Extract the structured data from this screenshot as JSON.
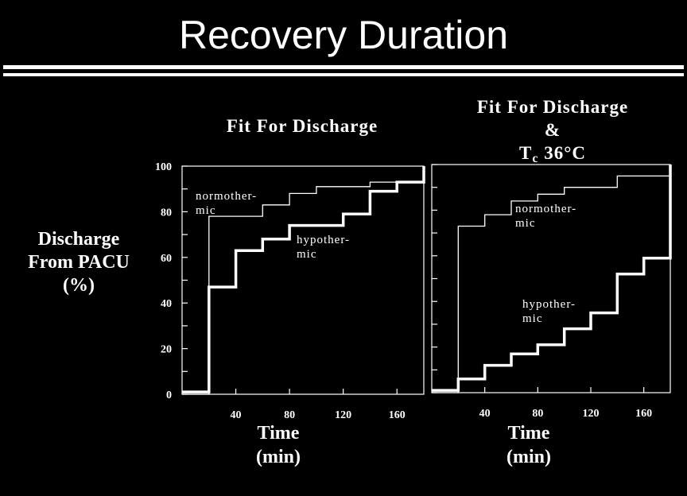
{
  "page": {
    "title": "Recovery Duration",
    "ylabel_lines": [
      "Discharge",
      "From PACU",
      "(%)"
    ],
    "xlabel_lines": [
      "Time",
      "(min)"
    ]
  },
  "colors": {
    "background": "#000000",
    "foreground": "#ffffff"
  },
  "chart_data": [
    {
      "type": "line",
      "step": true,
      "title": "Fit For Discharge",
      "xlabel": "Time (min)",
      "ylabel": "Discharge From PACU (%)",
      "xlim": [
        0,
        180
      ],
      "ylim": [
        0,
        100
      ],
      "xticks": [
        40,
        80,
        120,
        160
      ],
      "yticks": [
        0,
        20,
        40,
        60,
        80,
        100
      ],
      "series": [
        {
          "name": "normother-mic",
          "label_lines": [
            "normother-",
            "mic"
          ],
          "x": [
            0,
            20,
            20,
            60,
            60,
            80,
            80,
            100,
            100,
            140,
            140,
            180,
            180
          ],
          "y": [
            0,
            0,
            78,
            78,
            83,
            83,
            88,
            88,
            91,
            91,
            93,
            93,
            100
          ]
        },
        {
          "name": "hypother-mic",
          "label_lines": [
            "hypother-",
            "mic"
          ],
          "x": [
            0,
            20,
            20,
            40,
            40,
            60,
            60,
            80,
            80,
            120,
            120,
            140,
            140,
            160,
            160,
            180,
            180
          ],
          "y": [
            1,
            1,
            47,
            47,
            63,
            63,
            68,
            68,
            74,
            74,
            79,
            79,
            89,
            89,
            93,
            93,
            100
          ]
        }
      ]
    },
    {
      "type": "line",
      "step": true,
      "title_lines": [
        "Fit For Discharge",
        "&"
      ],
      "title_symbol": "T",
      "title_symbol_sub": "c",
      "title_glyph": "",
      "title_value": "36°C",
      "xlabel": "Time (min)",
      "xlim": [
        0,
        180
      ],
      "ylim": [
        0,
        100
      ],
      "xticks": [
        40,
        80,
        120,
        160
      ],
      "yticks": [
        0,
        20,
        40,
        60,
        80,
        100
      ],
      "series": [
        {
          "name": "normother-mic",
          "label_lines": [
            "normother-",
            "mic"
          ],
          "x": [
            0,
            20,
            20,
            40,
            40,
            60,
            60,
            80,
            80,
            100,
            100,
            140,
            140,
            180,
            180
          ],
          "y": [
            0,
            0,
            73,
            73,
            78,
            78,
            84,
            84,
            87,
            87,
            90,
            90,
            95,
            95,
            100
          ]
        },
        {
          "name": "hypother-mic",
          "label_lines": [
            "hypother-",
            "mic"
          ],
          "x": [
            0,
            20,
            20,
            40,
            40,
            60,
            60,
            80,
            80,
            100,
            100,
            120,
            120,
            140,
            140,
            160,
            160,
            180,
            180
          ],
          "y": [
            1,
            1,
            6,
            6,
            12,
            12,
            17,
            17,
            21,
            21,
            28,
            28,
            35,
            35,
            52,
            52,
            59,
            59,
            100
          ]
        }
      ]
    }
  ]
}
